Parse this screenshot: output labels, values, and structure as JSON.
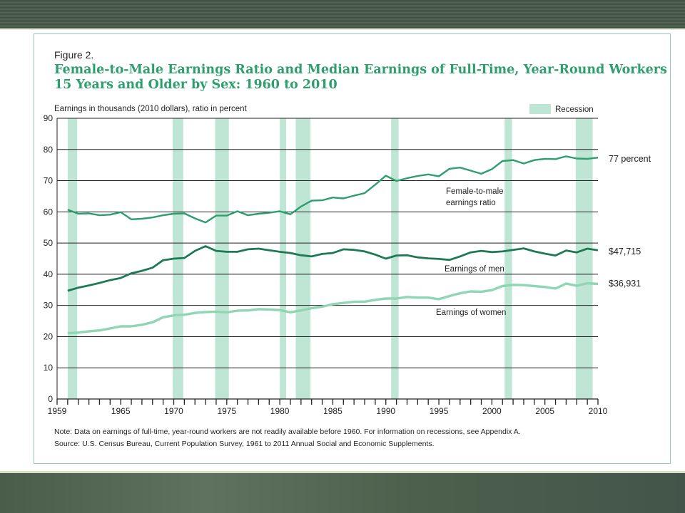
{
  "figure_label": "Figure 2.",
  "title_line1": "Female-to-Male Earnings Ratio and Median Earnings of Full-Time, Year-Round Workers",
  "title_line2": "15 Years and Older by Sex: 1960 to 2010",
  "note": "Note: Data on earnings of full-time, year-round workers are not readily available before 1960. For information on recessions, see Appendix A.",
  "source": "Source: U.S. Census Bureau, Current Population Survey, 1961 to 2011 Annual Social and Economic Supplements.",
  "colors": {
    "ratio": "#2e9e6e",
    "men": "#1d7a55",
    "women": "#8fd6b4",
    "recession": "#bfe6d4"
  },
  "chart_data": {
    "type": "line",
    "ylabel": "Earnings in thousands (2010 dollars), ratio in percent",
    "xlim": [
      1959,
      2010
    ],
    "ylim": [
      0,
      90
    ],
    "yticks": [
      0,
      10,
      20,
      30,
      40,
      50,
      60,
      70,
      80,
      90
    ],
    "xticks": [
      1959,
      1965,
      1970,
      1975,
      1980,
      1985,
      1990,
      1995,
      2000,
      2005,
      2010
    ],
    "legend": {
      "recession_label": "Recession",
      "placement": "top-right"
    },
    "recessions": [
      [
        1960,
        1960.9
      ],
      [
        1969.9,
        1970.9
      ],
      [
        1973.9,
        1975.2
      ],
      [
        1980,
        1980.6
      ],
      [
        1981.5,
        1982.9
      ],
      [
        1990.5,
        1991.2
      ],
      [
        2001.2,
        2001.9
      ],
      [
        2007.9,
        2009.5
      ]
    ],
    "x": [
      1960,
      1961,
      1962,
      1963,
      1964,
      1965,
      1966,
      1967,
      1968,
      1969,
      1970,
      1971,
      1972,
      1973,
      1974,
      1975,
      1976,
      1977,
      1978,
      1979,
      1980,
      1981,
      1982,
      1983,
      1984,
      1985,
      1986,
      1987,
      1988,
      1989,
      1990,
      1991,
      1992,
      1993,
      1994,
      1995,
      1996,
      1997,
      1998,
      1999,
      2000,
      2001,
      2002,
      2003,
      2004,
      2005,
      2006,
      2007,
      2008,
      2009,
      2010
    ],
    "series": [
      {
        "name": "Female-to-male earnings ratio",
        "end_label": "77 percent",
        "values": [
          60.7,
          59.4,
          59.5,
          58.9,
          59.1,
          59.9,
          57.6,
          57.8,
          58.2,
          58.9,
          59.4,
          59.5,
          57.9,
          56.6,
          58.8,
          58.8,
          60.2,
          58.9,
          59.4,
          59.7,
          60.2,
          59.2,
          61.7,
          63.6,
          63.7,
          64.6,
          64.3,
          65.2,
          66.0,
          68.7,
          71.6,
          69.9,
          70.8,
          71.5,
          72.0,
          71.4,
          73.8,
          74.2,
          73.2,
          72.2,
          73.7,
          76.3,
          76.6,
          75.5,
          76.6,
          77.0,
          76.9,
          77.8,
          77.1,
          77.0,
          77.4
        ]
      },
      {
        "name": "Earnings of men",
        "end_label": "$47,715",
        "values": [
          34.7,
          35.7,
          36.4,
          37.2,
          38.1,
          38.8,
          40.3,
          41.1,
          42.1,
          44.5,
          45.0,
          45.2,
          47.5,
          49.0,
          47.5,
          47.2,
          47.2,
          48.0,
          48.2,
          47.7,
          47.2,
          46.8,
          46.1,
          45.7,
          46.5,
          46.8,
          48.0,
          47.8,
          47.3,
          46.3,
          45.0,
          46.0,
          46.1,
          45.4,
          45.1,
          44.9,
          44.6,
          45.7,
          47.0,
          47.5,
          47.1,
          47.3,
          47.8,
          48.3,
          47.3,
          46.6,
          46.0,
          47.6,
          47.0,
          48.2,
          47.7
        ]
      },
      {
        "name": "Earnings of women",
        "end_label": "$36,931",
        "values": [
          21.1,
          21.3,
          21.7,
          22.0,
          22.6,
          23.3,
          23.3,
          23.8,
          24.6,
          26.2,
          26.8,
          27.0,
          27.6,
          27.9,
          28.0,
          27.8,
          28.3,
          28.4,
          28.8,
          28.7,
          28.5,
          27.8,
          28.4,
          29.1,
          29.6,
          30.4,
          30.8,
          31.2,
          31.2,
          31.8,
          32.2,
          32.2,
          32.7,
          32.5,
          32.5,
          32.0,
          33.0,
          33.9,
          34.5,
          34.4,
          34.9,
          36.2,
          36.6,
          36.5,
          36.2,
          35.9,
          35.4,
          37.0,
          36.3,
          37.1,
          36.9
        ]
      }
    ]
  }
}
